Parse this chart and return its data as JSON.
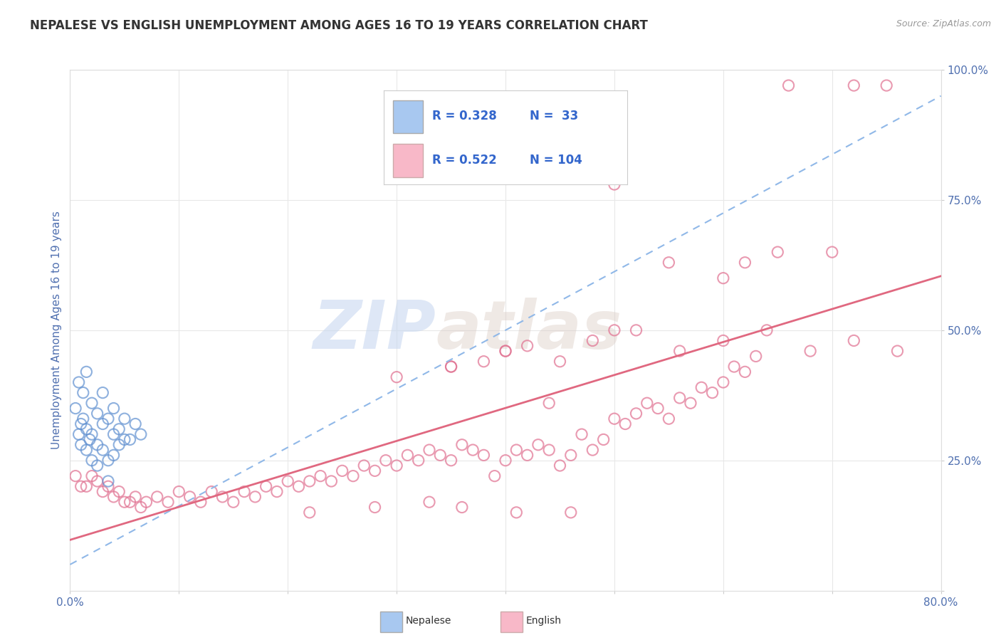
{
  "title": "NEPALESE VS ENGLISH UNEMPLOYMENT AMONG AGES 16 TO 19 YEARS CORRELATION CHART",
  "source": "Source: ZipAtlas.com",
  "ylabel": "Unemployment Among Ages 16 to 19 years",
  "xlim": [
    0.0,
    80.0
  ],
  "ylim": [
    0.0,
    100.0
  ],
  "xticks": [
    0.0,
    10.0,
    20.0,
    30.0,
    40.0,
    50.0,
    60.0,
    70.0,
    80.0
  ],
  "xticklabels": [
    "0.0%",
    "",
    "",
    "",
    "",
    "",
    "",
    "",
    "80.0%"
  ],
  "yticks": [
    0.0,
    25.0,
    50.0,
    75.0,
    100.0
  ],
  "yticklabels": [
    "",
    "25.0%",
    "50.0%",
    "75.0%",
    "100.0%"
  ],
  "watermark_zip": "ZIP",
  "watermark_atlas": "atlas",
  "nepalese_color": "#a8c8f0",
  "nepalese_edge": "#6090d0",
  "english_color": "#f8b8c8",
  "english_edge": "#e07090",
  "nepalese_R": 0.328,
  "nepalese_N": 33,
  "english_R": 0.522,
  "english_N": 104,
  "nepalese_line_color": "#90b8e8",
  "english_line_color": "#e06880",
  "background_color": "#ffffff",
  "grid_color": "#e8e8e8",
  "title_color": "#333333",
  "axis_label_color": "#5070b0",
  "tick_color": "#5070b0",
  "nepalese_scatter_x": [
    0.5,
    0.8,
    1.0,
    1.0,
    1.2,
    1.5,
    1.5,
    1.8,
    2.0,
    2.0,
    2.5,
    2.5,
    3.0,
    3.0,
    3.5,
    3.5,
    4.0,
    4.0,
    4.5,
    5.0,
    0.8,
    1.2,
    1.5,
    2.0,
    2.5,
    3.0,
    3.5,
    4.0,
    4.5,
    5.0,
    5.5,
    6.0,
    6.5
  ],
  "nepalese_scatter_y": [
    35.0,
    30.0,
    32.0,
    28.0,
    33.0,
    31.0,
    27.0,
    29.0,
    30.0,
    25.0,
    28.0,
    24.0,
    32.0,
    27.0,
    25.0,
    21.0,
    30.0,
    26.0,
    28.0,
    29.0,
    40.0,
    38.0,
    42.0,
    36.0,
    34.0,
    38.0,
    33.0,
    35.0,
    31.0,
    33.0,
    29.0,
    32.0,
    30.0
  ],
  "english_scatter_x": [
    0.5,
    1.0,
    1.5,
    2.0,
    2.5,
    3.0,
    3.5,
    4.0,
    4.5,
    5.0,
    5.5,
    6.0,
    6.5,
    7.0,
    8.0,
    9.0,
    10.0,
    11.0,
    12.0,
    13.0,
    14.0,
    15.0,
    16.0,
    17.0,
    18.0,
    19.0,
    20.0,
    21.0,
    22.0,
    23.0,
    24.0,
    25.0,
    26.0,
    27.0,
    28.0,
    29.0,
    30.0,
    31.0,
    32.0,
    33.0,
    34.0,
    35.0,
    36.0,
    37.0,
    38.0,
    39.0,
    40.0,
    41.0,
    42.0,
    43.0,
    44.0,
    45.0,
    46.0,
    47.0,
    48.0,
    49.0,
    50.0,
    51.0,
    52.0,
    53.0,
    54.0,
    55.0,
    56.0,
    57.0,
    58.0,
    59.0,
    60.0,
    61.0,
    62.0,
    63.0,
    50.0,
    55.0,
    60.0,
    62.0,
    65.0,
    66.0,
    70.0,
    72.0,
    75.0,
    35.0,
    40.0,
    45.0,
    50.0,
    30.0,
    35.0,
    38.0,
    40.0,
    42.0,
    48.0,
    52.0,
    56.0,
    60.0,
    64.0,
    68.0,
    72.0,
    76.0,
    44.0,
    22.0,
    28.0,
    33.0,
    36.0,
    41.0,
    46.0
  ],
  "english_scatter_y": [
    22.0,
    20.0,
    20.0,
    22.0,
    21.0,
    19.0,
    20.0,
    18.0,
    19.0,
    17.0,
    17.0,
    18.0,
    16.0,
    17.0,
    18.0,
    17.0,
    19.0,
    18.0,
    17.0,
    19.0,
    18.0,
    17.0,
    19.0,
    18.0,
    20.0,
    19.0,
    21.0,
    20.0,
    21.0,
    22.0,
    21.0,
    23.0,
    22.0,
    24.0,
    23.0,
    25.0,
    24.0,
    26.0,
    25.0,
    27.0,
    26.0,
    25.0,
    28.0,
    27.0,
    26.0,
    22.0,
    25.0,
    27.0,
    26.0,
    28.0,
    27.0,
    24.0,
    26.0,
    30.0,
    27.0,
    29.0,
    33.0,
    32.0,
    34.0,
    36.0,
    35.0,
    33.0,
    37.0,
    36.0,
    39.0,
    38.0,
    40.0,
    43.0,
    42.0,
    45.0,
    78.0,
    63.0,
    60.0,
    63.0,
    65.0,
    97.0,
    65.0,
    97.0,
    97.0,
    43.0,
    46.0,
    44.0,
    50.0,
    41.0,
    43.0,
    44.0,
    46.0,
    47.0,
    48.0,
    50.0,
    46.0,
    48.0,
    50.0,
    46.0,
    48.0,
    46.0,
    36.0,
    15.0,
    16.0,
    17.0,
    16.0,
    15.0,
    15.0
  ]
}
